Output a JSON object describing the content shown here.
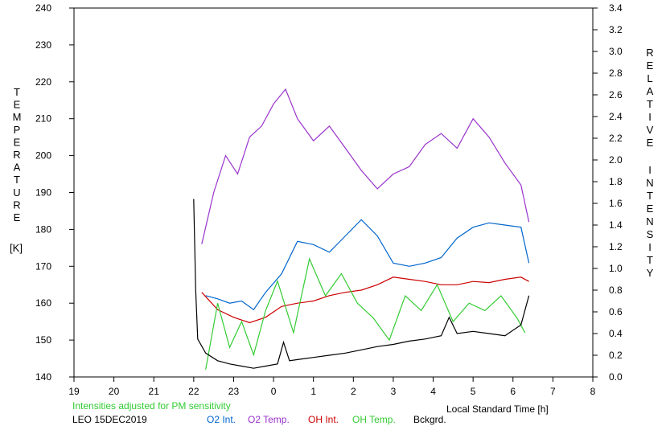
{
  "chart_data": {
    "type": "line",
    "left_axis": {
      "label_letters": [
        "T",
        "E",
        "M",
        "P",
        "E",
        "R",
        "A",
        "T",
        "U",
        "R",
        "E"
      ],
      "unit": "[K]",
      "ylim": [
        140,
        240
      ],
      "ticks": [
        140,
        150,
        160,
        170,
        180,
        190,
        200,
        210,
        220,
        230,
        240
      ]
    },
    "right_axis": {
      "label_word1": [
        "R",
        "E",
        "L",
        "A",
        "T",
        "I",
        "V",
        "E"
      ],
      "label_word2": [
        "I",
        "N",
        "T",
        "E",
        "N",
        "S",
        "I",
        "T",
        "Y"
      ],
      "ylim": [
        0.0,
        3.4
      ],
      "ticks": [
        "0.0",
        "0.2",
        "0.4",
        "0.6",
        "0.8",
        "1.0",
        "1.2",
        "1.4",
        "1.6",
        "1.8",
        "2.0",
        "2.2",
        "2.4",
        "2.6",
        "2.8",
        "3.0",
        "3.2",
        "3.4"
      ]
    },
    "x_axis": {
      "label": "Local Standard Time [h]",
      "ticks": [
        "19",
        "20",
        "21",
        "22",
        "23",
        "0",
        "1",
        "2",
        "3",
        "4",
        "5",
        "6",
        "7",
        "8"
      ],
      "xlim": [
        19,
        32
      ]
    },
    "grid": false,
    "note": "Intensities adjusted for PM sensitivity",
    "station": "LEO 15DEC2019",
    "series": [
      {
        "name": "O2 Int.",
        "color": "#0066cc",
        "axis": "right",
        "x": [
          22.3,
          22.6,
          22.9,
          23.2,
          23.5,
          23.8,
          24.2,
          24.6,
          25.0,
          25.4,
          25.8,
          26.2,
          26.6,
          27.0,
          27.4,
          27.8,
          28.2,
          28.6,
          29.0,
          29.4,
          29.8,
          30.2,
          30.4
        ],
        "y": [
          0.75,
          0.72,
          0.68,
          0.7,
          0.62,
          0.78,
          0.95,
          1.25,
          1.22,
          1.15,
          1.3,
          1.45,
          1.3,
          1.05,
          1.02,
          1.05,
          1.1,
          1.28,
          1.38,
          1.42,
          1.4,
          1.38,
          1.05
        ]
      },
      {
        "name": "O2 Temp.",
        "color": "#9933cc",
        "axis": "left",
        "x": [
          22.2,
          22.5,
          22.8,
          23.1,
          23.4,
          23.7,
          24.0,
          24.3,
          24.6,
          25.0,
          25.4,
          25.8,
          26.2,
          26.6,
          27.0,
          27.4,
          27.8,
          28.2,
          28.6,
          29.0,
          29.4,
          29.8,
          30.2,
          30.4
        ],
        "y": [
          176,
          190,
          200,
          195,
          205,
          208,
          214,
          218,
          210,
          204,
          208,
          202,
          196,
          191,
          195,
          197,
          203,
          206,
          202,
          210,
          205,
          198,
          192,
          182
        ]
      },
      {
        "name": "OH Int.",
        "color": "#cc0000",
        "axis": "right",
        "x": [
          22.2,
          22.6,
          23.0,
          23.4,
          23.8,
          24.2,
          24.6,
          25.0,
          25.4,
          25.8,
          26.2,
          26.6,
          27.0,
          27.4,
          27.8,
          28.2,
          28.6,
          29.0,
          29.4,
          29.8,
          30.2,
          30.4
        ],
        "y": [
          0.78,
          0.62,
          0.55,
          0.5,
          0.55,
          0.65,
          0.68,
          0.7,
          0.75,
          0.78,
          0.8,
          0.85,
          0.92,
          0.9,
          0.88,
          0.85,
          0.85,
          0.88,
          0.87,
          0.9,
          0.92,
          0.88
        ]
      },
      {
        "name": "OH Temp.",
        "color": "#33cc33",
        "axis": "left",
        "x": [
          22.3,
          22.6,
          22.9,
          23.2,
          23.5,
          23.8,
          24.1,
          24.5,
          24.9,
          25.3,
          25.7,
          26.1,
          26.5,
          26.9,
          27.3,
          27.7,
          28.1,
          28.5,
          28.9,
          29.3,
          29.7,
          30.1,
          30.3
        ],
        "y": [
          142,
          160,
          148,
          155,
          146,
          158,
          166,
          152,
          172,
          162,
          168,
          160,
          156,
          150,
          162,
          158,
          165,
          155,
          160,
          158,
          162,
          156,
          152
        ]
      },
      {
        "name": "Bckgrd.",
        "color": "#000000",
        "axis": "right",
        "x": [
          22.0,
          22.05,
          22.1,
          22.3,
          22.6,
          22.9,
          23.2,
          23.5,
          23.8,
          24.1,
          24.25,
          24.4,
          24.6,
          25.0,
          25.4,
          25.8,
          26.2,
          26.6,
          27.0,
          27.4,
          27.8,
          28.2,
          28.4,
          28.6,
          29.0,
          29.4,
          29.8,
          30.2,
          30.4
        ],
        "y": [
          1.64,
          0.8,
          0.35,
          0.22,
          0.15,
          0.12,
          0.1,
          0.08,
          0.1,
          0.12,
          0.32,
          0.15,
          0.16,
          0.18,
          0.2,
          0.22,
          0.25,
          0.28,
          0.3,
          0.33,
          0.35,
          0.38,
          0.55,
          0.4,
          0.42,
          0.4,
          0.38,
          0.48,
          0.75
        ]
      }
    ]
  }
}
